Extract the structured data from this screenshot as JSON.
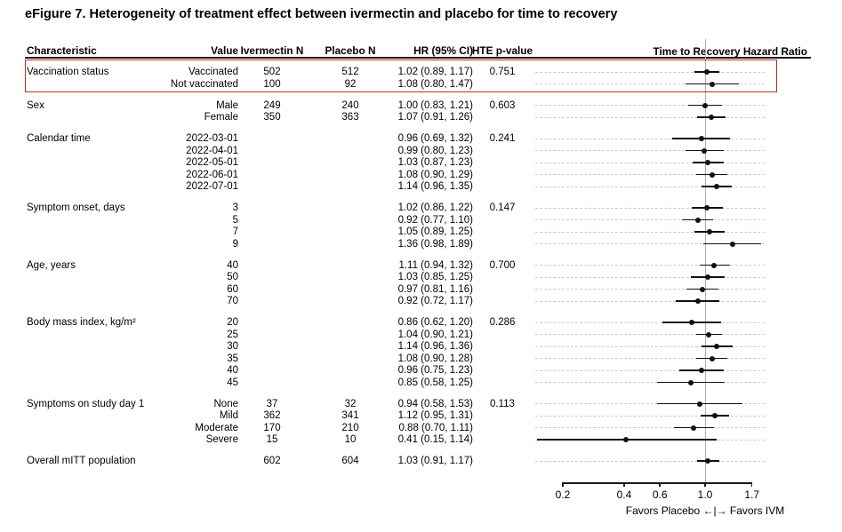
{
  "figure_title": "eFigure 7. Heterogeneity of treatment effect between ivermectin and placebo for time to recovery",
  "table": {
    "headers": [
      "Characteristic",
      "Value",
      "Ivermectin N",
      "Placebo N",
      "HR (95% CI)",
      "HTE p-value"
    ],
    "plot_title": "Time to Recovery Hazard Ratio"
  },
  "chart_data": {
    "type": "forest",
    "x_scale": "log",
    "x_ticks": [
      0.2,
      0.4,
      0.6,
      1.0,
      1.7
    ],
    "x_range": [
      0.2,
      1.7
    ],
    "ref_line": 1.0,
    "axis_note": "Favors Placebo ←|→ Favors IVM",
    "grid": "dashed-horizontal-per-row",
    "legend_position": "none",
    "groups": [
      {
        "characteristic": "Vaccination status",
        "p_value": "0.751",
        "highlighted": true,
        "rows": [
          {
            "value": "Vaccinated",
            "ivermectin_n": "502",
            "placebo_n": "512",
            "hr": [
              1.02,
              0.89,
              1.17
            ]
          },
          {
            "value": "Not vaccinated",
            "ivermectin_n": "100",
            "placebo_n": "92",
            "hr": [
              1.08,
              0.8,
              1.47
            ]
          }
        ]
      },
      {
        "characteristic": "Sex",
        "p_value": "0.603",
        "rows": [
          {
            "value": "Male",
            "ivermectin_n": "249",
            "placebo_n": "240",
            "hr": [
              1.0,
              0.83,
              1.21
            ]
          },
          {
            "value": "Female",
            "ivermectin_n": "350",
            "placebo_n": "363",
            "hr": [
              1.07,
              0.91,
              1.26
            ]
          }
        ]
      },
      {
        "characteristic": "Calendar time",
        "p_value": "0.241",
        "rows": [
          {
            "value": "2022-03-01",
            "hr": [
              0.96,
              0.69,
              1.32
            ]
          },
          {
            "value": "2022-04-01",
            "hr": [
              0.99,
              0.8,
              1.23
            ]
          },
          {
            "value": "2022-05-01",
            "hr": [
              1.03,
              0.87,
              1.23
            ]
          },
          {
            "value": "2022-06-01",
            "hr": [
              1.08,
              0.9,
              1.29
            ]
          },
          {
            "value": "2022-07-01",
            "hr": [
              1.14,
              0.96,
              1.35
            ]
          }
        ]
      },
      {
        "characteristic": "Symptom onset, days",
        "p_value": "0.147",
        "rows": [
          {
            "value": "3",
            "hr": [
              1.02,
              0.86,
              1.22
            ]
          },
          {
            "value": "5",
            "hr": [
              0.92,
              0.77,
              1.1
            ]
          },
          {
            "value": "7",
            "hr": [
              1.05,
              0.89,
              1.25
            ]
          },
          {
            "value": "9",
            "hr": [
              1.36,
              0.98,
              1.89
            ]
          }
        ]
      },
      {
        "characteristic": "Age, years",
        "p_value": "0.700",
        "rows": [
          {
            "value": "40",
            "hr": [
              1.11,
              0.94,
              1.32
            ]
          },
          {
            "value": "50",
            "hr": [
              1.03,
              0.85,
              1.25
            ]
          },
          {
            "value": "60",
            "hr": [
              0.97,
              0.81,
              1.16
            ]
          },
          {
            "value": "70",
            "hr": [
              0.92,
              0.72,
              1.17
            ]
          }
        ]
      },
      {
        "characteristic": "Body mass index, kg/m²",
        "p_value": "0.286",
        "rows": [
          {
            "value": "20",
            "hr": [
              0.86,
              0.62,
              1.2
            ]
          },
          {
            "value": "25",
            "hr": [
              1.04,
              0.9,
              1.21
            ]
          },
          {
            "value": "30",
            "hr": [
              1.14,
              0.96,
              1.36
            ]
          },
          {
            "value": "35",
            "hr": [
              1.08,
              0.9,
              1.28
            ]
          },
          {
            "value": "40",
            "hr": [
              0.96,
              0.75,
              1.23
            ]
          },
          {
            "value": "45",
            "hr": [
              0.85,
              0.58,
              1.25
            ]
          }
        ]
      },
      {
        "characteristic": "Symptoms on study day 1",
        "p_value": "0.113",
        "rows": [
          {
            "value": "None",
            "ivermectin_n": "37",
            "placebo_n": "32",
            "hr": [
              0.94,
              0.58,
              1.53
            ]
          },
          {
            "value": "Mild",
            "ivermectin_n": "362",
            "placebo_n": "341",
            "hr": [
              1.12,
              0.95,
              1.31
            ]
          },
          {
            "value": "Moderate",
            "ivermectin_n": "170",
            "placebo_n": "210",
            "hr": [
              0.88,
              0.7,
              1.11
            ]
          },
          {
            "value": "Severe",
            "ivermectin_n": "15",
            "placebo_n": "10",
            "hr": [
              0.41,
              0.15,
              1.14
            ]
          }
        ]
      },
      {
        "characteristic": "Overall mITT population",
        "rows": [
          {
            "ivermectin_n": "602",
            "placebo_n": "604",
            "hr": [
              1.03,
              0.91,
              1.17
            ]
          }
        ]
      }
    ]
  },
  "colors": {
    "highlight_box": "#bb3124",
    "reference_line": "#b0b0b0",
    "gridline": "#cccccc",
    "marker": "#111111",
    "text": "#000000"
  }
}
